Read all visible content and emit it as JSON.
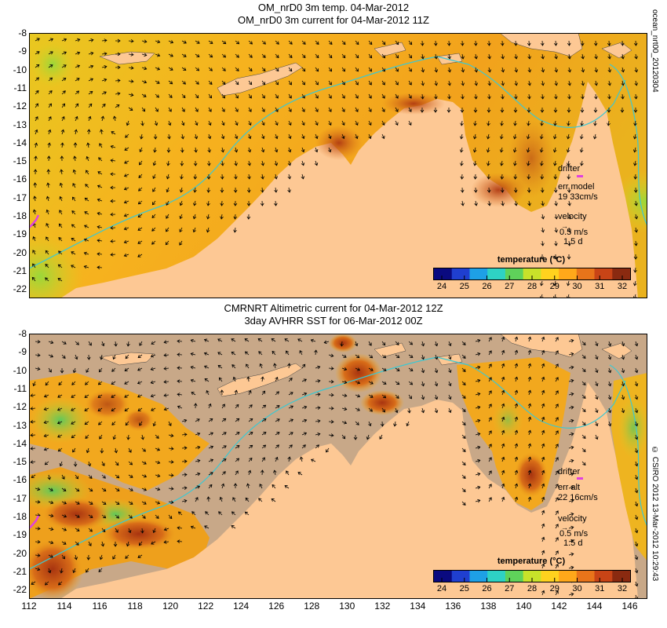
{
  "top_panel": {
    "title_line1": "OM_nrD0 3m temp. 04-Mar-2012",
    "title_line2": "OM_nrD0 3m current for 04-Mar-2012 11Z",
    "side_label": "ocean_nrt00_20120304",
    "drifter_label": "drifter",
    "err_label": "err model",
    "err_value": "19 33cm/s",
    "velocity_label": "velocity",
    "velocity_value": "0.5 m/s",
    "velocity_days": "1.5 d",
    "colorbar_title": "temperature (°C)"
  },
  "bottom_panel": {
    "title_line1": "CMRNRT Altimetric current for 04-Mar-2012 12Z",
    "title_line2": "3day AVHRR SST for 06-Mar-2012 00Z",
    "side_label": "© CSIRO 2012  13-Mar-2012 10:29:43",
    "drifter_label": "drifter",
    "err_label": "err alt",
    "err_value": "22 16cm/s",
    "velocity_label": "velocity",
    "velocity_value": "0.5 m/s",
    "velocity_days": "1.5 d",
    "colorbar_title": "temperature (°C)"
  },
  "latitude_ticks": [
    "-8",
    "-9",
    "-10",
    "-11",
    "-12",
    "-13",
    "-14",
    "-15",
    "-16",
    "-17",
    "-18",
    "-19",
    "-20",
    "-21",
    "-22"
  ],
  "longitude_ticks": [
    "112",
    "114",
    "116",
    "118",
    "120",
    "122",
    "124",
    "126",
    "128",
    "130",
    "132",
    "134",
    "136",
    "138",
    "140",
    "142",
    "144",
    "146"
  ],
  "colorbar_ticks": [
    "24",
    "25",
    "26",
    "27",
    "28",
    "29",
    "30",
    "31",
    "32"
  ],
  "colorbar_colors": [
    "#0a0a80",
    "#1f3fd0",
    "#1ea0e6",
    "#2ed2c4",
    "#5fd25a",
    "#c8e22a",
    "#ffd21e",
    "#ffa81a",
    "#e8741a",
    "#c84416",
    "#8a2a10"
  ],
  "colors": {
    "land": "#fdc894",
    "no_data": "#c8a888",
    "sea_warm": "#f6b21e",
    "sea_hot": "#d06418",
    "isobath": "#3cc8d2",
    "drifter": "#e040e0",
    "arrow": "#000000"
  },
  "map_extent": {
    "lon_range": [
      112,
      147
    ],
    "lat_range": [
      -22.5,
      -8
    ]
  }
}
